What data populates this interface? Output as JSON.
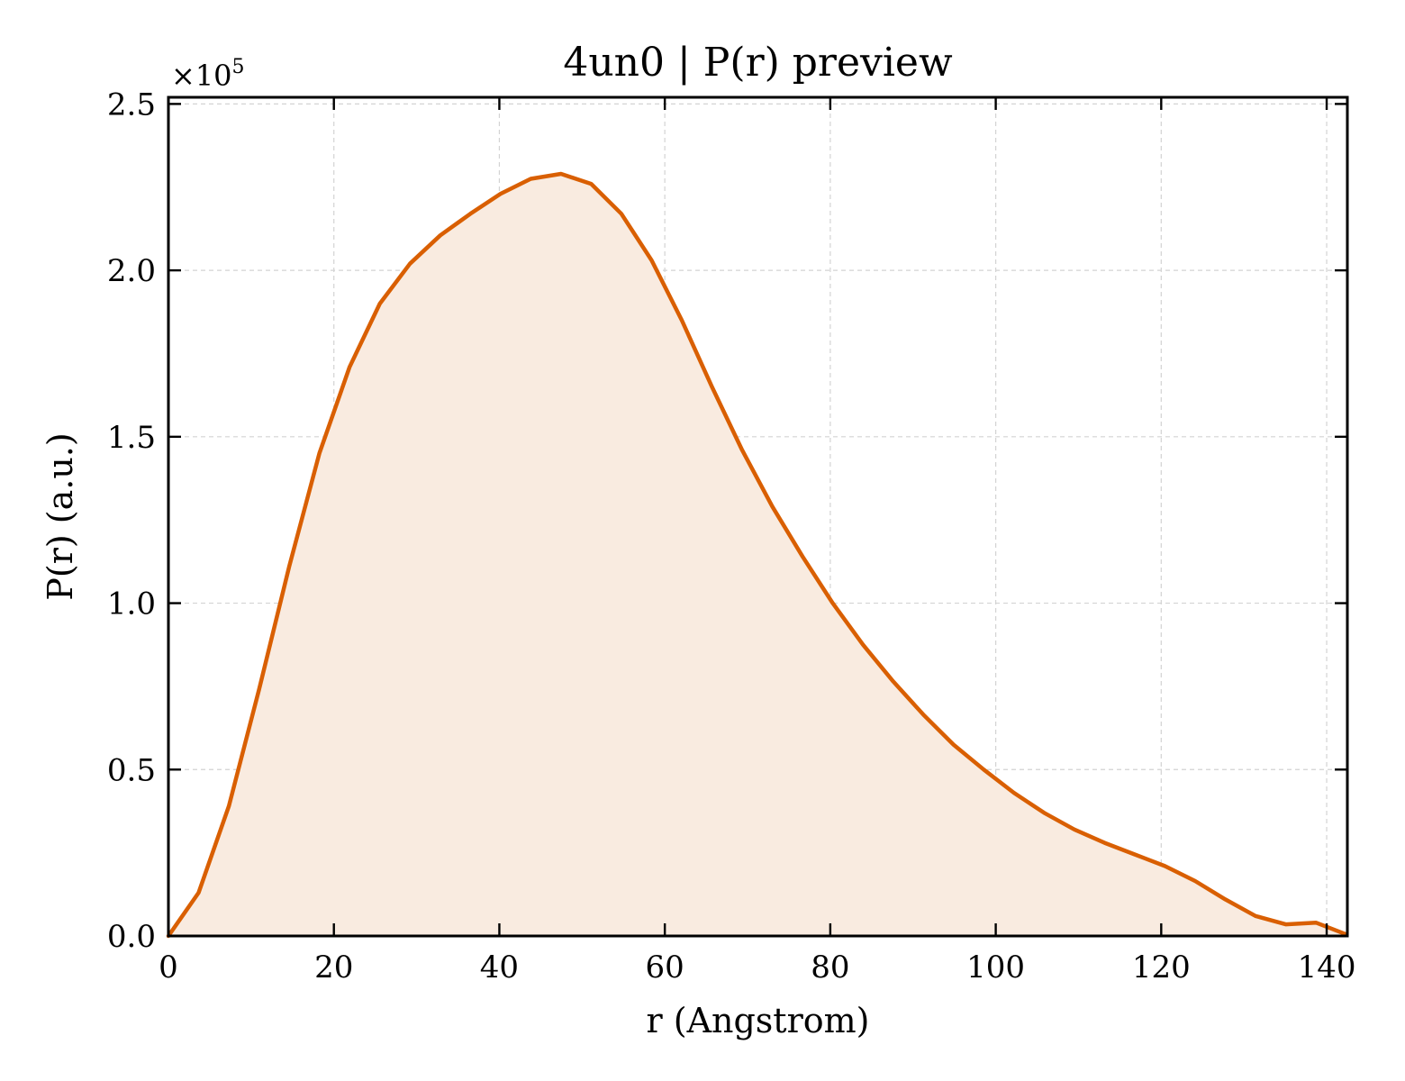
{
  "chart_data": {
    "type": "area",
    "title": "4un0 | P(r) preview",
    "xlabel": "r (Angstrom)",
    "ylabel": "P(r) (a.u.)",
    "y_offset_text": "×10",
    "y_offset_exponent": "5",
    "y_scale": 100000,
    "xlim": [
      0,
      142.5
    ],
    "ylim": [
      0,
      2.52
    ],
    "x_ticks": [
      0,
      20,
      40,
      60,
      80,
      100,
      120,
      140
    ],
    "x_tick_labels": [
      "0",
      "20",
      "40",
      "60",
      "80",
      "100",
      "120",
      "140"
    ],
    "y_ticks": [
      0.0,
      0.5,
      1.0,
      1.5,
      2.0,
      2.5
    ],
    "y_tick_labels": [
      "0.0",
      "0.5",
      "1.0",
      "1.5",
      "2.0",
      "2.5"
    ],
    "grid": true,
    "colors": {
      "line": "#d95f02",
      "fill": "#f9ebe0"
    },
    "x": [
      0,
      3.65,
      7.3,
      10.95,
      14.6,
      18.25,
      21.9,
      25.55,
      29.2,
      32.85,
      36.5,
      40.15,
      43.8,
      47.45,
      51.1,
      54.75,
      58.4,
      62.05,
      65.7,
      69.35,
      73.0,
      76.65,
      80.3,
      83.95,
      87.6,
      91.25,
      94.9,
      98.55,
      102.2,
      105.85,
      109.5,
      113.15,
      116.8,
      120.45,
      124.1,
      127.75,
      131.4,
      135.05,
      138.7,
      142.35
    ],
    "y": [
      0.0,
      0.13,
      0.39,
      0.74,
      1.11,
      1.45,
      1.71,
      1.9,
      2.02,
      2.105,
      2.17,
      2.23,
      2.275,
      2.29,
      2.26,
      2.17,
      2.03,
      1.85,
      1.65,
      1.46,
      1.29,
      1.14,
      1.0,
      0.875,
      0.765,
      0.665,
      0.575,
      0.5,
      0.43,
      0.37,
      0.32,
      0.28,
      0.245,
      0.21,
      0.165,
      0.11,
      0.06,
      0.035,
      0.04,
      0.005
    ]
  }
}
